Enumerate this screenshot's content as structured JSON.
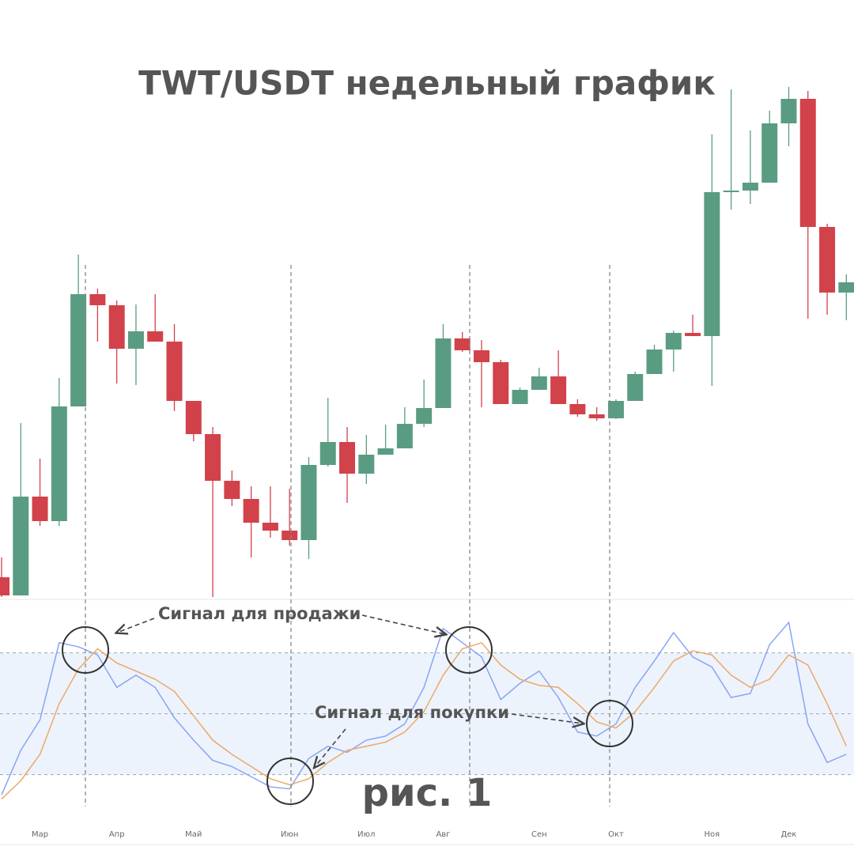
{
  "chart_data": [
    {
      "type": "candlestick",
      "title": "TWT/USDT недельный график",
      "open": [
        30,
        7,
        132,
        101,
        246,
        388,
        374,
        319,
        341,
        328,
        253,
        211,
        152,
        129,
        99,
        89,
        77,
        172,
        201,
        161,
        185,
        193,
        224,
        244,
        332,
        317,
        302,
        249,
        267,
        284,
        249,
        236,
        231,
        253,
        287,
        318,
        339,
        335,
        517,
        519,
        529,
        604,
        635,
        473,
        390
      ],
      "close": [
        7,
        132,
        101,
        246,
        388,
        374,
        319,
        341,
        328,
        253,
        211,
        152,
        129,
        99,
        89,
        77,
        172,
        201,
        161,
        185,
        193,
        224,
        244,
        332,
        317,
        302,
        249,
        267,
        284,
        249,
        236,
        231,
        253,
        287,
        318,
        339,
        335,
        517,
        519,
        529,
        604,
        635,
        473,
        390,
        403
      ],
      "high": [
        55,
        225,
        180,
        282,
        438,
        395,
        380,
        375,
        388,
        350,
        253,
        220,
        165,
        145,
        145,
        142,
        182,
        257,
        220,
        210,
        223,
        245,
        280,
        350,
        340,
        330,
        305,
        270,
        295,
        317,
        255,
        245,
        255,
        290,
        324,
        342,
        362,
        590,
        647,
        595,
        620,
        650,
        645,
        477,
        413
      ],
      "low": [
        5,
        7,
        95,
        95,
        246,
        328,
        275,
        273,
        328,
        240,
        202,
        5,
        120,
        55,
        80,
        70,
        53,
        170,
        124,
        148,
        185,
        193,
        220,
        244,
        315,
        245,
        249,
        249,
        267,
        249,
        233,
        228,
        230,
        253,
        287,
        290,
        335,
        272,
        495,
        502,
        529,
        575,
        357,
        362,
        355
      ],
      "up_color": "#5a9c82",
      "down_color": "#d1424a",
      "ylim": [
        0,
        650
      ]
    },
    {
      "type": "line",
      "categories": [
        null,
        null,
        "Мар",
        null,
        null,
        null,
        "Апр",
        null,
        null,
        null,
        "Май",
        null,
        null,
        null,
        null,
        "Июн",
        null,
        null,
        null,
        "Июл",
        null,
        null,
        null,
        "Авг",
        null,
        null,
        null,
        null,
        "Сен",
        null,
        null,
        null,
        "Окт",
        null,
        null,
        null,
        null,
        "Ноя",
        null,
        null,
        null,
        "Дек",
        null,
        null,
        null
      ],
      "series": [
        {
          "color": "#8aa4f3",
          "values": [
            10,
            32,
            47,
            85,
            83,
            79,
            63,
            69,
            63,
            48,
            37,
            27,
            24,
            19,
            14,
            13,
            28,
            34,
            31,
            37,
            39,
            45,
            63,
            92,
            85,
            78,
            57,
            65,
            71,
            58,
            41,
            39,
            45,
            63,
            76,
            90,
            78,
            73,
            58,
            60,
            84,
            95,
            45,
            26,
            30
          ]
        },
        {
          "color": "#eea867",
          "values": [
            8,
            17,
            30,
            55,
            72,
            82,
            75,
            71,
            67,
            61,
            49,
            37,
            30,
            24,
            18,
            15,
            18,
            26,
            32,
            34,
            36,
            41,
            51,
            69,
            82,
            85,
            74,
            67,
            64,
            63,
            55,
            46,
            43,
            51,
            63,
            76,
            81,
            79,
            69,
            63,
            67,
            79,
            74,
            55,
            34
          ]
        }
      ],
      "ylim": [
        -20,
        105
      ],
      "yticks": [
        20,
        50,
        80
      ],
      "annotations": [
        "Сигнал для продажи",
        "Сигнал для покупки",
        "рис. 1"
      ]
    }
  ]
}
